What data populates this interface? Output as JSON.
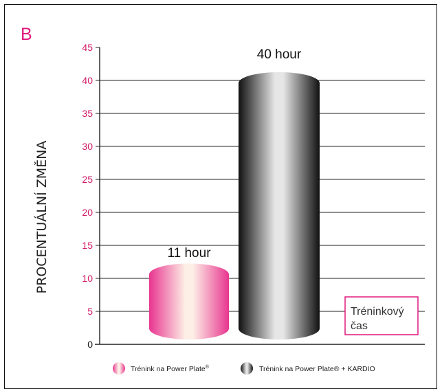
{
  "chart_data": {
    "type": "bar",
    "panel_label": "B",
    "ylabel": "PROCENTUÁLNÍ ZMĚNA",
    "ylim": [
      0,
      45
    ],
    "yticks": [
      0,
      5,
      10,
      15,
      20,
      25,
      30,
      35,
      40,
      45
    ],
    "grid": true,
    "categories": [
      "Trénink na Power Plate®",
      "Trénink na Power Plate® + KARDIO"
    ],
    "series": [
      {
        "name": "Trénink na Power Plate®",
        "value": 11,
        "data_label": "11 hour",
        "color": "#e8358f",
        "highlight": "#fdeee6"
      },
      {
        "name": "Trénink na Power Plate® + KARDIO",
        "value": 40,
        "data_label": "40 hour",
        "color": "#111111",
        "highlight": "#e6e6e6"
      }
    ],
    "legend": {
      "placement": "bottom",
      "items": [
        "Trénink na Power Plate",
        "Trénink na Power Plate® + KARDIO"
      ],
      "superscript": "®"
    },
    "annotation": {
      "lines": [
        "Tréninkový",
        "čas"
      ],
      "border_color": "#e0197d"
    }
  }
}
